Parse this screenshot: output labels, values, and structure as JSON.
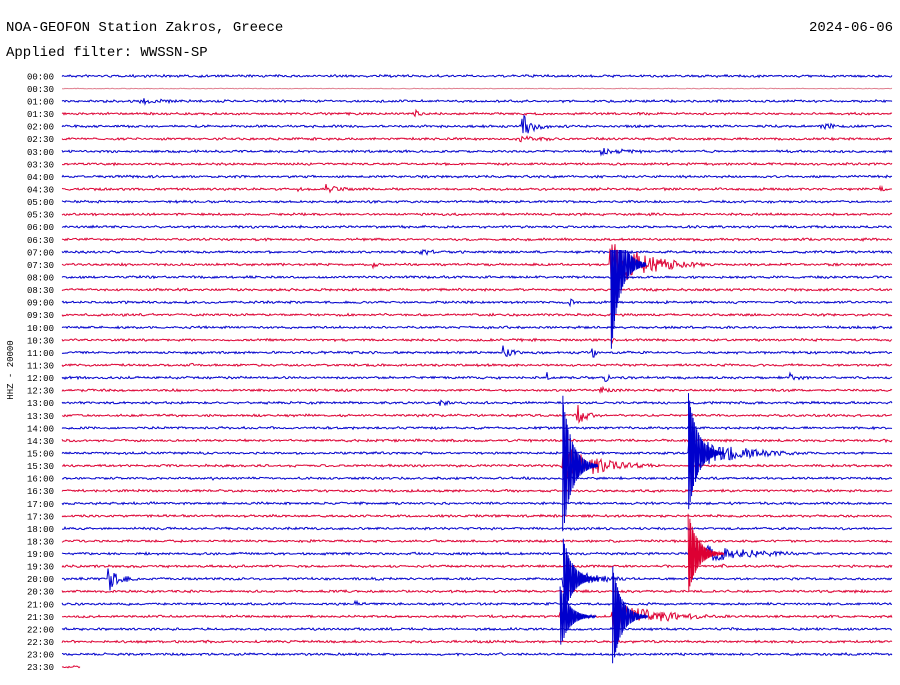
{
  "header": {
    "station": "NOA-GEOFON Station Zakros, Greece",
    "date": "2024-06-06",
    "filter": "Applied filter: WWSSN-SP"
  },
  "axis_label": "HHZ - 20000",
  "time_labels": [
    "00:00",
    "00:30",
    "01:00",
    "01:30",
    "02:00",
    "02:30",
    "03:00",
    "03:30",
    "04:00",
    "04:30",
    "05:00",
    "05:30",
    "06:00",
    "06:30",
    "07:00",
    "07:30",
    "08:00",
    "08:30",
    "09:00",
    "09:30",
    "10:00",
    "10:30",
    "11:00",
    "11:30",
    "12:00",
    "12:30",
    "13:00",
    "13:30",
    "14:00",
    "14:30",
    "15:00",
    "15:30",
    "16:00",
    "16:30",
    "17:00",
    "17:30",
    "18:00",
    "18:30",
    "19:00",
    "19:30",
    "20:00",
    "20:30",
    "21:00",
    "21:30",
    "22:00",
    "22:30",
    "23:00",
    "23:30"
  ]
}
